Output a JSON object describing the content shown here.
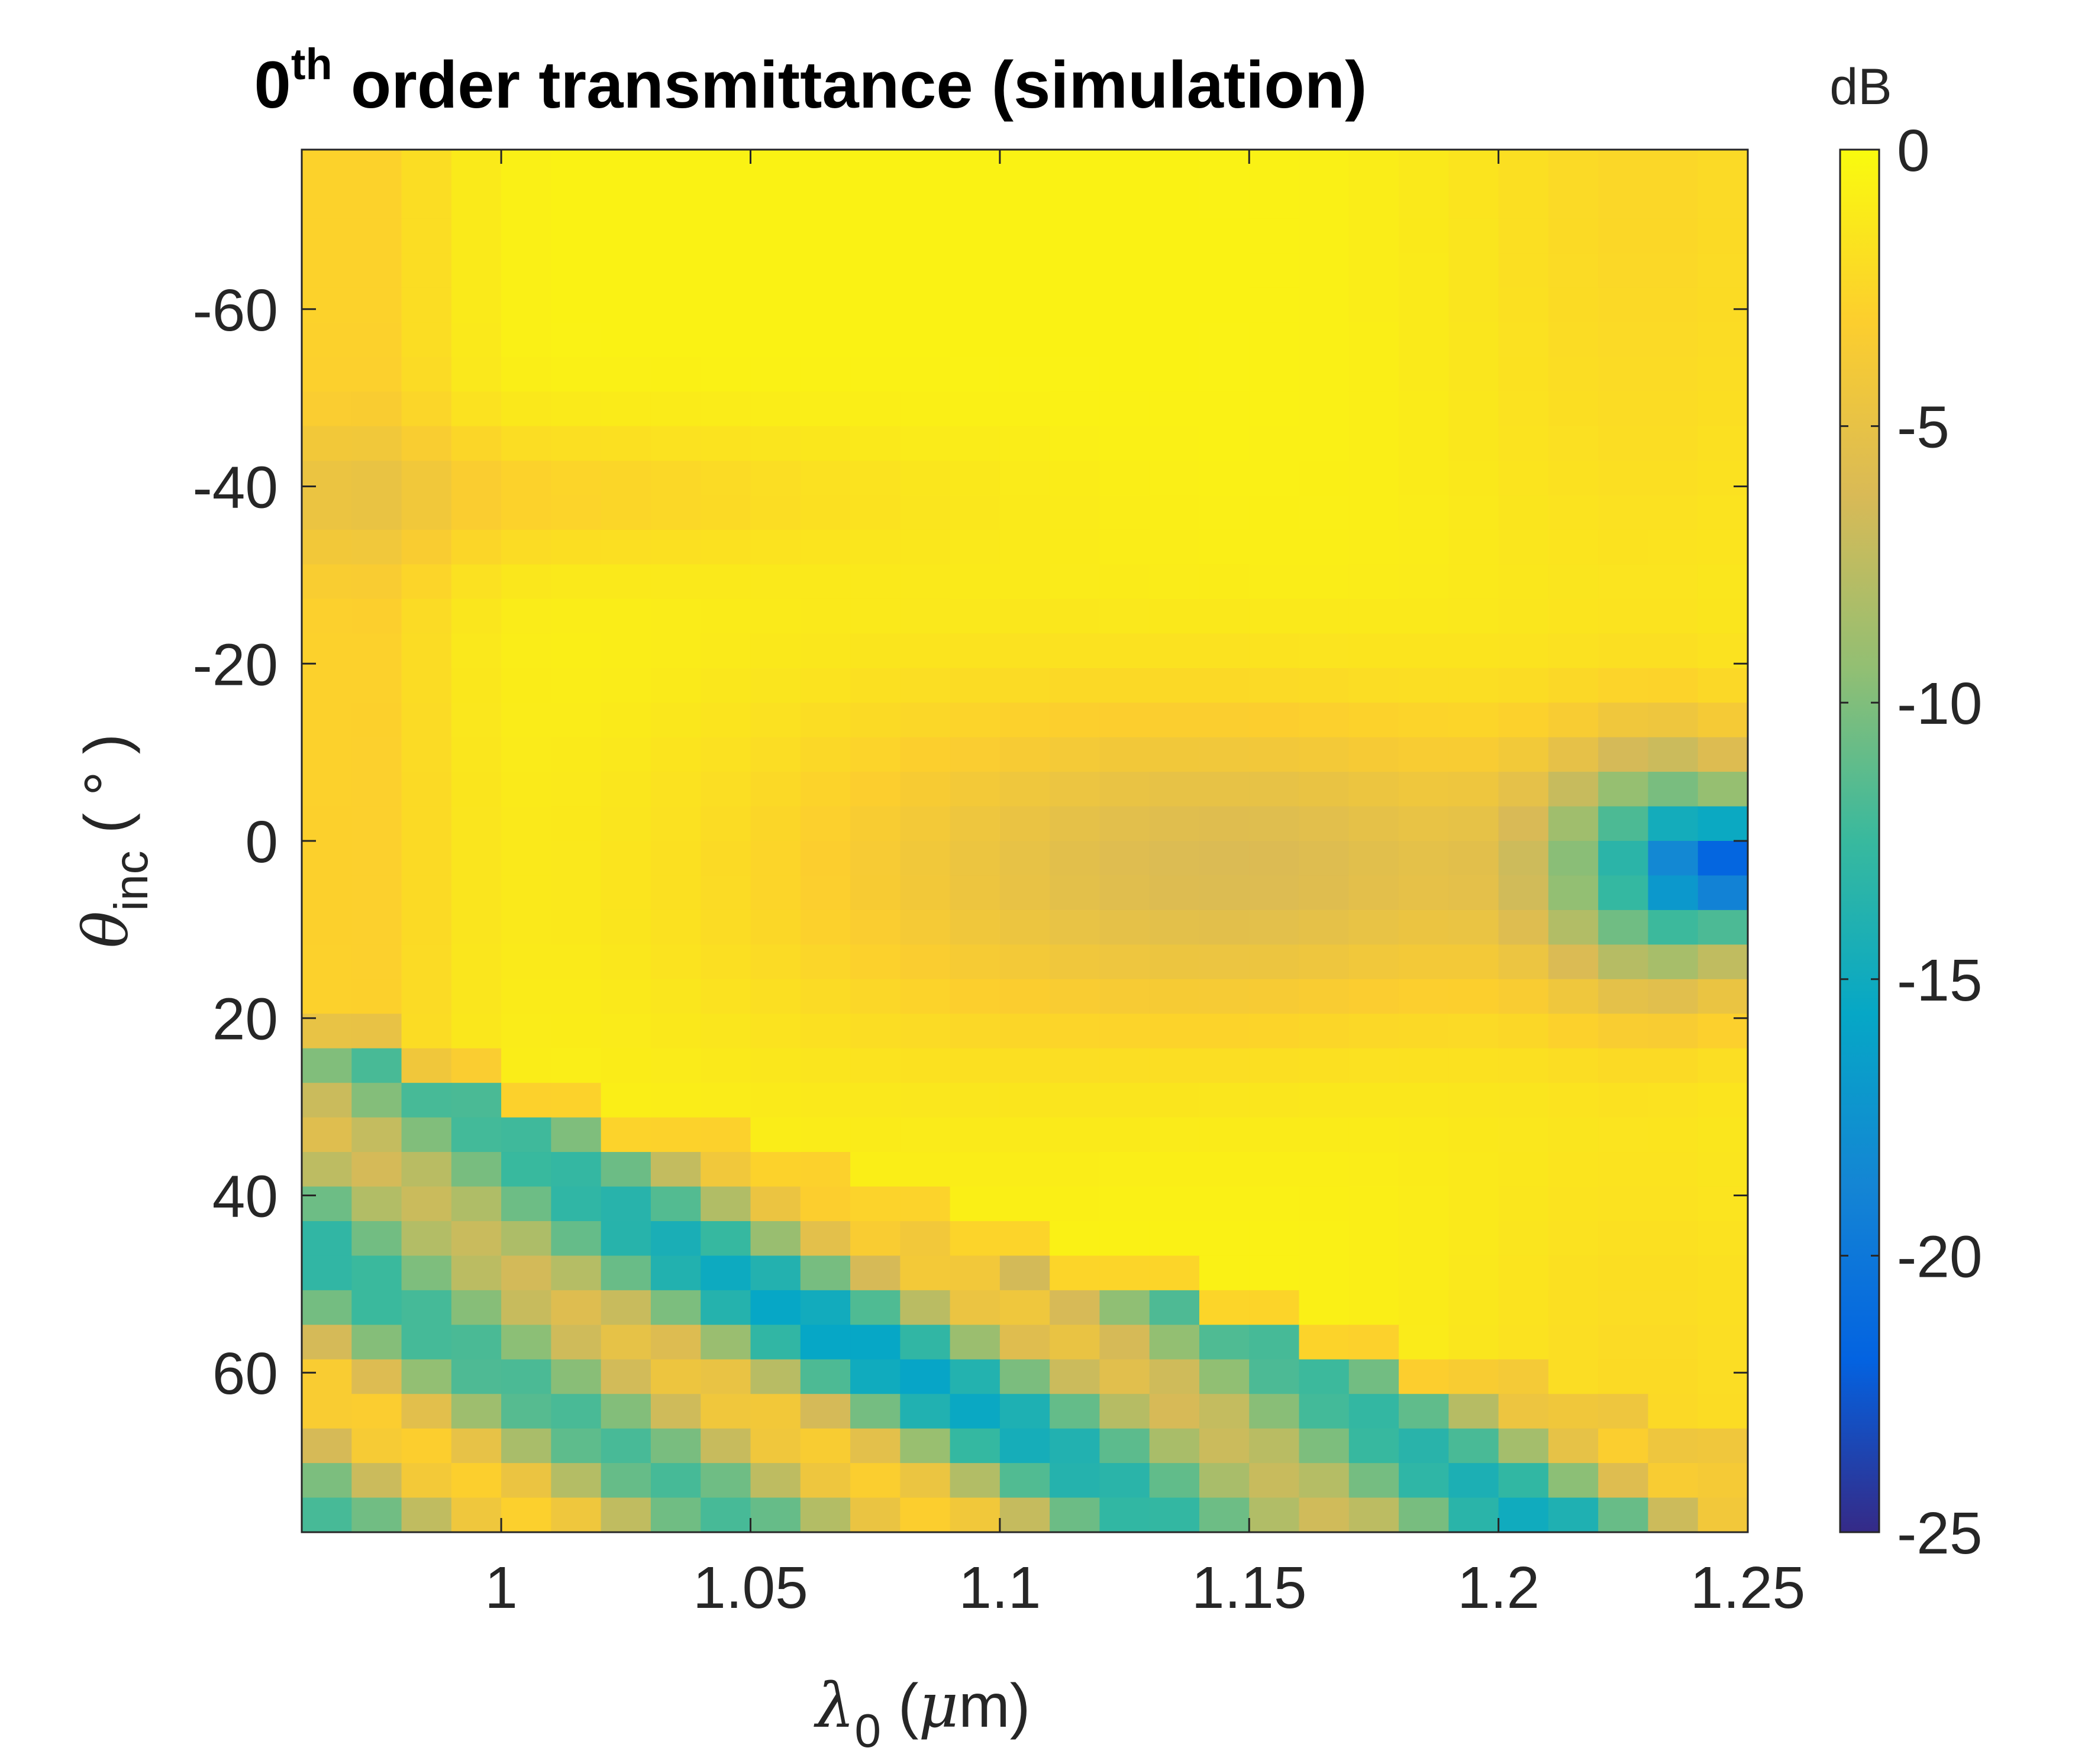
{
  "chart_data": {
    "type": "heatmap",
    "title": {
      "prefix": "0",
      "superscript": "th",
      "rest": " order transmittance (simulation)"
    },
    "xlabel": {
      "symbol": "λ",
      "subscript": "0",
      "unit_open": " (",
      "unit_symbol": "μ",
      "unit_rest": "m)"
    },
    "ylabel": {
      "symbol": "θ",
      "subscript": "inc",
      "unit": " ( ° )"
    },
    "xlim": [
      0.96,
      1.25
    ],
    "ylim": [
      -78,
      78
    ],
    "y_reversed": true,
    "x_ticks": [
      1,
      1.05,
      1.1,
      1.15,
      1.2,
      1.25
    ],
    "x_tick_labels": [
      "1",
      "1.05",
      "1.1",
      "1.15",
      "1.2",
      "1.25"
    ],
    "y_ticks": [
      -60,
      -40,
      -20,
      0,
      20,
      40,
      60
    ],
    "y_tick_labels": [
      "-60",
      "-40",
      "-20",
      "0",
      "20",
      "40",
      "60"
    ],
    "grid": {
      "columns": 29,
      "rows": 40,
      "x_step": 0.01,
      "y_step": 4
    },
    "z_description": "0th order transmittance in dB; approx 0 dB (yellow) over most of the upper region, about -3 dB orange bands, a -6 dB band near 0 deg for wavelength 1.12-1.20 um, a dip to about -24 dB near 1.245 um and 5 deg, and a diffraction region below the line from (0.96, 25 deg) to (1.245, 75 deg) with values between -2 and -16 dB.",
    "colorbar": {
      "label": "dB",
      "clim": [
        -25,
        0
      ],
      "ticks": [
        0,
        -5,
        -10,
        -15,
        -20,
        -25
      ],
      "tick_labels": [
        "0",
        "-5",
        "-10",
        "-15",
        "-20",
        "-25"
      ],
      "colormap": "parula",
      "colormap_stops": [
        "#352a87",
        "#0363e1",
        "#1485d4",
        "#06a7c6",
        "#38b99e",
        "#92bf73",
        "#d9ba56",
        "#fcce2e",
        "#f9fb0e"
      ]
    }
  }
}
